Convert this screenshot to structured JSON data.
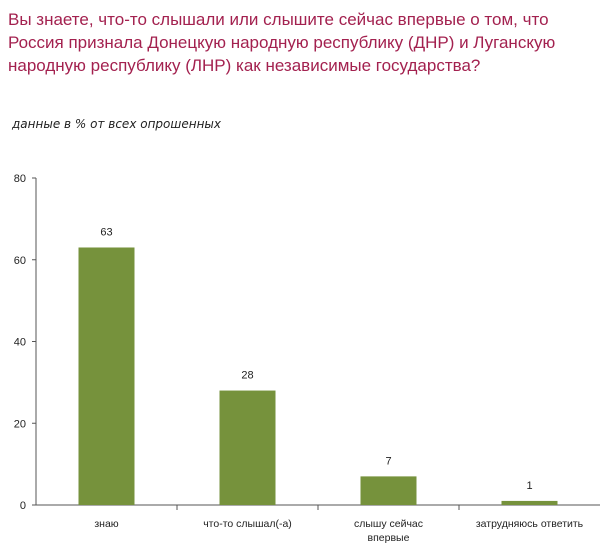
{
  "header": {
    "title": "Вы знаете, что-то слышали или слышите сейчас впервые о том, что Россия признала Донецкую народную республику (ДНР) и Луганскую народную республику (ЛНР) как независимые государства?",
    "subtitle": "данные в % от всех опрошенных"
  },
  "chart_data": {
    "type": "bar",
    "categories": [
      [
        "знаю"
      ],
      [
        "что-то слышал(-а)"
      ],
      [
        "слышу сейчас",
        "впервые"
      ],
      [
        "затрудняюсь ответить"
      ]
    ],
    "values": [
      63,
      28,
      7,
      1
    ],
    "yticks": [
      0,
      20,
      40,
      60,
      80
    ],
    "ylim": [
      0,
      80
    ],
    "bar_color": "#76923c",
    "grid": false
  }
}
